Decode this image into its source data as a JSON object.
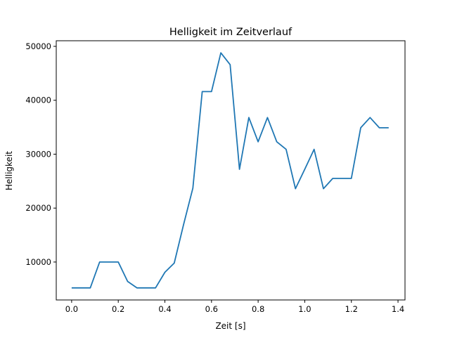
{
  "chart_data": {
    "type": "line",
    "title": "Helligkeit im Zeitverlauf",
    "xlabel": "Zeit [s]",
    "ylabel": "Helligkeit",
    "xlim": [
      -0.066,
      1.43
    ],
    "ylim": [
      2960,
      51040
    ],
    "xticks": [
      0.0,
      0.2,
      0.4,
      0.6,
      0.8,
      1.0,
      1.2,
      1.4
    ],
    "xtick_labels": [
      "0.0",
      "0.2",
      "0.4",
      "0.6",
      "0.8",
      "1.0",
      "1.2",
      "1.4"
    ],
    "yticks": [
      10000,
      20000,
      30000,
      40000,
      50000
    ],
    "ytick_labels": [
      "10000",
      "20000",
      "30000",
      "40000",
      "50000"
    ],
    "grid": false,
    "series": [
      {
        "name": "Helligkeit",
        "color": "#1f77b4",
        "x": [
          0.0,
          0.04,
          0.08,
          0.12,
          0.16,
          0.2,
          0.24,
          0.28,
          0.32,
          0.36,
          0.4,
          0.44,
          0.48,
          0.52,
          0.56,
          0.6,
          0.64,
          0.68,
          0.72,
          0.76,
          0.8,
          0.84,
          0.88,
          0.92,
          0.96,
          1.0,
          1.04,
          1.08,
          1.12,
          1.16,
          1.2,
          1.24,
          1.28,
          1.32,
          1.36
        ],
        "y": [
          5200,
          5200,
          5200,
          10000,
          10000,
          10000,
          6400,
          5200,
          5200,
          5200,
          8100,
          9800,
          16900,
          23700,
          41600,
          41600,
          48800,
          46600,
          27200,
          36800,
          32300,
          36800,
          32300,
          30900,
          23600,
          27200,
          30900,
          23600,
          25500,
          25500,
          25500,
          34900,
          36800,
          34900,
          34900
        ]
      }
    ]
  }
}
